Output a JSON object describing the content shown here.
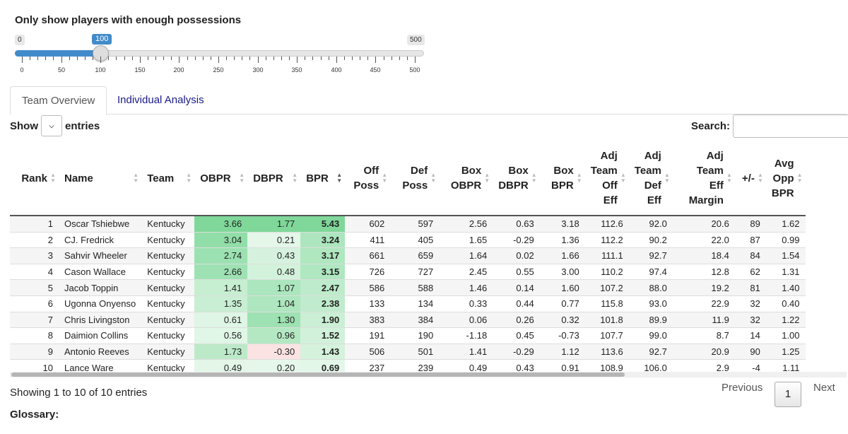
{
  "slider": {
    "title": "Only show players with enough possessions",
    "min": "0",
    "max": "500",
    "value": "100",
    "value_num": 100,
    "max_num": 500,
    "tick_labels": [
      "0",
      "50",
      "100",
      "150",
      "200",
      "250",
      "300",
      "350",
      "400",
      "450",
      "500"
    ]
  },
  "tabs": [
    {
      "label": "Team Overview",
      "active": true
    },
    {
      "label": "Individual Analysis",
      "active": false
    }
  ],
  "controls": {
    "show_label": "Show",
    "entries_label": "entries",
    "select_icon": "chevron-down-icon",
    "search_label": "Search:"
  },
  "table": {
    "columns": [
      {
        "label": "Rank",
        "lines": [
          "Rank"
        ],
        "align": "r"
      },
      {
        "label": "Name",
        "lines": [
          "Name"
        ],
        "align": "l"
      },
      {
        "label": "Team",
        "lines": [
          "Team"
        ],
        "align": "l"
      },
      {
        "label": "OBPR",
        "lines": [
          "OBPR"
        ],
        "align": "l"
      },
      {
        "label": "DBPR",
        "lines": [
          "DBPR"
        ],
        "align": "l"
      },
      {
        "label": "BPR",
        "lines": [
          "BPR"
        ],
        "align": "l",
        "sorted": true
      },
      {
        "label": "Off Poss",
        "lines": [
          "Off",
          "Poss"
        ],
        "align": "r"
      },
      {
        "label": "Def Poss",
        "lines": [
          "Def",
          "Poss"
        ],
        "align": "r"
      },
      {
        "label": "Box OBPR",
        "lines": [
          "Box",
          "OBPR"
        ],
        "align": "r"
      },
      {
        "label": "Box DBPR",
        "lines": [
          "Box",
          "DBPR"
        ],
        "align": "r"
      },
      {
        "label": "Box BPR",
        "lines": [
          "Box",
          "BPR"
        ],
        "align": "r"
      },
      {
        "label": "Adj Team Off Eff",
        "lines": [
          "Adj",
          "Team",
          "Off",
          "Eff"
        ],
        "align": "r"
      },
      {
        "label": "Adj Team Def Eff",
        "lines": [
          "Adj",
          "Team",
          "Def",
          "Eff"
        ],
        "align": "r"
      },
      {
        "label": "Adj Team Eff Margin",
        "lines": [
          "Adj",
          "Team",
          "Eff",
          "Margin"
        ],
        "align": "r"
      },
      {
        "label": "+/-",
        "lines": [
          "+/-"
        ],
        "align": "r"
      },
      {
        "label": "Avg Opp BPR",
        "lines": [
          "Avg",
          "Opp",
          "BPR"
        ],
        "align": "r"
      }
    ],
    "rows": [
      [
        "1",
        "Oscar Tshiebwe",
        "Kentucky",
        "3.66",
        "1.77",
        "5.43",
        "602",
        "597",
        "2.56",
        "0.63",
        "3.18",
        "112.6",
        "92.0",
        "20.6",
        "89",
        "1.62"
      ],
      [
        "2",
        "CJ. Fredrick",
        "Kentucky",
        "3.04",
        "0.21",
        "3.24",
        "411",
        "405",
        "1.65",
        "-0.29",
        "1.36",
        "112.2",
        "90.2",
        "22.0",
        "87",
        "0.99"
      ],
      [
        "3",
        "Sahvir Wheeler",
        "Kentucky",
        "2.74",
        "0.43",
        "3.17",
        "661",
        "659",
        "1.64",
        "0.02",
        "1.66",
        "111.1",
        "92.7",
        "18.4",
        "84",
        "1.54"
      ],
      [
        "4",
        "Cason Wallace",
        "Kentucky",
        "2.66",
        "0.48",
        "3.15",
        "726",
        "727",
        "2.45",
        "0.55",
        "3.00",
        "110.2",
        "97.4",
        "12.8",
        "62",
        "1.31"
      ],
      [
        "5",
        "Jacob Toppin",
        "Kentucky",
        "1.41",
        "1.07",
        "2.47",
        "586",
        "588",
        "1.46",
        "0.14",
        "1.60",
        "107.2",
        "88.0",
        "19.2",
        "81",
        "1.40"
      ],
      [
        "6",
        "Ugonna Onyenso",
        "Kentucky",
        "1.35",
        "1.04",
        "2.38",
        "133",
        "134",
        "0.33",
        "0.44",
        "0.77",
        "115.8",
        "93.0",
        "22.9",
        "32",
        "0.40"
      ],
      [
        "7",
        "Chris Livingston",
        "Kentucky",
        "0.61",
        "1.30",
        "1.90",
        "383",
        "384",
        "0.06",
        "0.26",
        "0.32",
        "101.8",
        "89.9",
        "11.9",
        "32",
        "1.22"
      ],
      [
        "8",
        "Daimion Collins",
        "Kentucky",
        "0.56",
        "0.96",
        "1.52",
        "191",
        "190",
        "-1.18",
        "0.45",
        "-0.73",
        "107.7",
        "99.0",
        "8.7",
        "14",
        "1.00"
      ],
      [
        "9",
        "Antonio Reeves",
        "Kentucky",
        "1.73",
        "-0.30",
        "1.43",
        "506",
        "501",
        "1.41",
        "-0.29",
        "1.12",
        "113.6",
        "92.7",
        "20.9",
        "90",
        "1.25"
      ],
      [
        "10",
        "Lance Ware",
        "Kentucky",
        "0.49",
        "0.20",
        "0.69",
        "237",
        "239",
        "0.49",
        "0.43",
        "0.91",
        "108.9",
        "106.0",
        "2.9",
        "-4",
        "1.11"
      ]
    ],
    "heat_colors": {
      "high": "#7fd89a",
      "low": "#f2fbf4",
      "negative": "#fbe3e3"
    }
  },
  "footer": {
    "info": "Showing 1 to 10 of 10 entries",
    "previous": "Previous",
    "page": "1",
    "next": "Next",
    "glossary": "Glossary:"
  }
}
